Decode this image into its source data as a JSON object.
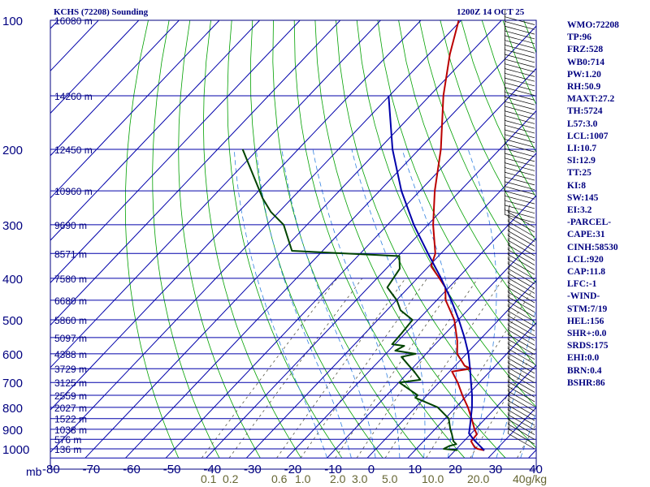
{
  "header": {
    "station": "KCHS (72208) Sounding",
    "datetime": "1200Z 14 OCT 25"
  },
  "stats": [
    "WMO:72208",
    "TP:96",
    "FRZ:528",
    "WB0:714",
    "PW:1.20",
    "RH:50.9",
    "MAXT:27.2",
    "TH:5724",
    "L57:3.0",
    "LCL:1007",
    "LI:10.7",
    "SI:12.9",
    "TT:25",
    "KI:8",
    "SW:145",
    "EI:3.2",
    "-PARCEL-",
    "CAPE:31",
    "CINH:58530",
    "LCL:920",
    "CAP:11.8",
    "LFC:-1",
    "-WIND-",
    "STM:7/19",
    "HEL:156",
    "SHR+:0.0",
    "SRDS:175",
    "EHI:0.0",
    "BRN:0.4",
    "BSHR:86"
  ],
  "chart_data": {
    "type": "line",
    "title": "KCHS (72208) Sounding",
    "subtitle": "1200Z 14 OCT 25",
    "y_axis": {
      "scale": "log",
      "unit_label": "mb",
      "range": [
        1000,
        100
      ],
      "ticks": [
        100,
        200,
        300,
        400,
        500,
        600,
        700,
        800,
        900,
        1000
      ]
    },
    "x_axis": {
      "skewed": true,
      "range": [
        -80,
        40
      ],
      "ticks": [
        -80,
        -70,
        -60,
        -50,
        -40,
        -30,
        -20,
        -10,
        0,
        10,
        20,
        30,
        40
      ]
    },
    "mixing_ratio_labels": [
      "0.1",
      "0.2",
      "0.6",
      "1.0",
      "2.0",
      "3.0",
      "5.0",
      "10.0",
      "20.0",
      "40g/kg"
    ],
    "heights": [
      {
        "p": 100,
        "label": "16080 m"
      },
      {
        "p": 150,
        "label": "14260 m"
      },
      {
        "p": 200,
        "label": "12450 m"
      },
      {
        "p": 250,
        "label": "10960 m"
      },
      {
        "p": 300,
        "label": "9690 m"
      },
      {
        "p": 350,
        "label": "8571 m"
      },
      {
        "p": 400,
        "label": "7580 m"
      },
      {
        "p": 450,
        "label": "6680 m"
      },
      {
        "p": 500,
        "label": "5860 m"
      },
      {
        "p": 550,
        "label": "5097 m"
      },
      {
        "p": 600,
        "label": "4388 m"
      },
      {
        "p": 650,
        "label": "3729 m"
      },
      {
        "p": 700,
        "label": "3125 m"
      },
      {
        "p": 750,
        "label": "2559 m"
      },
      {
        "p": 800,
        "label": "2027 m"
      },
      {
        "p": 850,
        "label": "1522 m"
      },
      {
        "p": 900,
        "label": "1038 m"
      },
      {
        "p": 950,
        "label": "576 m"
      },
      {
        "p": 1000,
        "label": "136 m"
      }
    ],
    "series": [
      {
        "role": "temperature",
        "color": "#bb0000",
        "points": [
          [
            1008,
            27.2
          ],
          [
            1000,
            25.2
          ],
          [
            990,
            24.0
          ],
          [
            960,
            21.8
          ],
          [
            925,
            21.6
          ],
          [
            900,
            19.8
          ],
          [
            850,
            16.6
          ],
          [
            800,
            13.0
          ],
          [
            750,
            8.8
          ],
          [
            700,
            4.6
          ],
          [
            660,
            0.6
          ],
          [
            650,
            4.6
          ],
          [
            640,
            2.4
          ],
          [
            600,
            -2.3
          ],
          [
            560,
            -5.3
          ],
          [
            500,
            -11.0
          ],
          [
            450,
            -17.8
          ],
          [
            420,
            -20.9
          ],
          [
            400,
            -24.5
          ],
          [
            375,
            -29.4
          ],
          [
            350,
            -31.4
          ],
          [
            300,
            -38.7
          ],
          [
            250,
            -46.3
          ],
          [
            200,
            -54.6
          ],
          [
            150,
            -66.6
          ],
          [
            120,
            -74.8
          ],
          [
            100,
            -80.6
          ]
        ]
      },
      {
        "role": "dewpoint",
        "color": "#004400",
        "points": [
          [
            1008,
            20.5
          ],
          [
            1000,
            16.8
          ],
          [
            985,
            17.5
          ],
          [
            975,
            18.8
          ],
          [
            960,
            17.4
          ],
          [
            925,
            15.4
          ],
          [
            900,
            13.8
          ],
          [
            850,
            10.9
          ],
          [
            800,
            5.5
          ],
          [
            760,
            -2.3
          ],
          [
            750,
            -2.3
          ],
          [
            700,
            -9.9
          ],
          [
            690,
            -5.3
          ],
          [
            660,
            -8.8
          ],
          [
            640,
            -11.4
          ],
          [
            610,
            -15.4
          ],
          [
            600,
            -12.6
          ],
          [
            590,
            -18.4
          ],
          [
            575,
            -17.3
          ],
          [
            570,
            -20.7
          ],
          [
            540,
            -20.9
          ],
          [
            500,
            -21.4
          ],
          [
            475,
            -26.6
          ],
          [
            450,
            -29.9
          ],
          [
            420,
            -35.3
          ],
          [
            380,
            -36.6
          ],
          [
            355,
            -39.7
          ],
          [
            345,
            -67.6
          ],
          [
            300,
            -75.8
          ],
          [
            280,
            -82.0
          ],
          [
            260,
            -87.3
          ],
          [
            200,
            -103.8
          ]
        ]
      },
      {
        "role": "parcel",
        "color": "#0000aa",
        "points": [
          [
            1008,
            27.2
          ],
          [
            950,
            21.9
          ],
          [
            920,
            19.4
          ],
          [
            900,
            18.6
          ],
          [
            850,
            16.4
          ],
          [
            800,
            14.0
          ],
          [
            750,
            11.2
          ],
          [
            700,
            7.9
          ],
          [
            650,
            4.4
          ],
          [
            600,
            0.5
          ],
          [
            550,
            -4.3
          ],
          [
            500,
            -9.9
          ],
          [
            450,
            -16.4
          ],
          [
            400,
            -24.1
          ],
          [
            350,
            -33.2
          ],
          [
            300,
            -43.5
          ],
          [
            250,
            -54.6
          ],
          [
            200,
            -66.6
          ],
          [
            150,
            -80.2
          ]
        ]
      }
    ]
  }
}
